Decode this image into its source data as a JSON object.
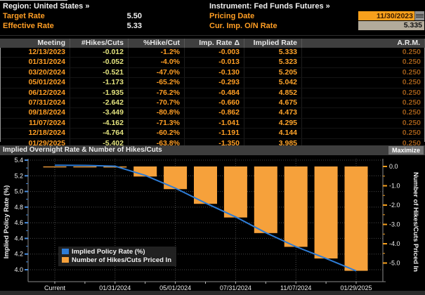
{
  "header": {
    "region_label": "Region: United States »",
    "target_rate_label": "Target Rate",
    "target_rate_value": "5.50",
    "effective_rate_label": "Effective Rate",
    "effective_rate_value": "5.33",
    "instrument_label": "Instrument: Fed Funds Futures »",
    "pricing_date_label": "Pricing Date",
    "pricing_date_value": "11/30/2023",
    "cur_imp_on_rate_label": "Cur. Imp. O/N Rate",
    "cur_imp_on_rate_value": "5.335"
  },
  "table": {
    "columns": [
      "Meeting",
      "#Hikes/Cuts",
      "%Hike/Cut",
      "Imp. Rate Δ",
      "Implied Rate",
      "A.R.M."
    ],
    "rows": [
      [
        "12/13/2023",
        "-0.012",
        "-1.2%",
        "-0.003",
        "5.333",
        "0.250"
      ],
      [
        "01/31/2024",
        "-0.052",
        "-4.0%",
        "-0.013",
        "5.323",
        "0.250"
      ],
      [
        "03/20/2024",
        "-0.521",
        "-47.0%",
        "-0.130",
        "5.205",
        "0.250"
      ],
      [
        "05/01/2024",
        "-1.173",
        "-65.2%",
        "-0.293",
        "5.042",
        "0.250"
      ],
      [
        "06/12/2024",
        "-1.935",
        "-76.2%",
        "-0.484",
        "4.852",
        "0.250"
      ],
      [
        "07/31/2024",
        "-2.642",
        "-70.7%",
        "-0.660",
        "4.675",
        "0.250"
      ],
      [
        "09/18/2024",
        "-3.449",
        "-80.8%",
        "-0.862",
        "4.473",
        "0.250"
      ],
      [
        "11/07/2024",
        "-4.162",
        "-71.3%",
        "-1.041",
        "4.295",
        "0.250"
      ],
      [
        "12/18/2024",
        "-4.764",
        "-60.2%",
        "-1.191",
        "4.144",
        "0.250"
      ],
      [
        "01/29/2025",
        "-5.402",
        "-63.8%",
        "-1.350",
        "3.985",
        "0.250"
      ]
    ]
  },
  "chart": {
    "title": "Implied Overnight Rate & Number of Hikes/Cuts",
    "maximize_label": "Maximize"
  },
  "chart_data": {
    "type": "combo",
    "categories": [
      "Current",
      "12/13/2023",
      "01/31/2024",
      "03/20/2024",
      "05/01/2024",
      "06/12/2024",
      "07/31/2024",
      "09/18/2024",
      "11/07/2024",
      "12/18/2024",
      "01/29/2025"
    ],
    "x_tick_indices": [
      0,
      2,
      4,
      6,
      8,
      10
    ],
    "x_tick_labels": [
      "Current",
      "01/31/2024",
      "05/01/2024",
      "07/31/2024",
      "11/07/2024",
      "01/29/2025"
    ],
    "series": [
      {
        "name": "Implied Policy Rate (%)",
        "type": "line",
        "axis": "left",
        "color": "#2e7cd6",
        "values": [
          5.335,
          5.333,
          5.323,
          5.205,
          5.042,
          4.852,
          4.675,
          4.473,
          4.295,
          4.144,
          3.985
        ]
      },
      {
        "name": "Number of Hikes/Cuts Priced In",
        "type": "bar",
        "axis": "right",
        "color": "#f6a13b",
        "values": [
          0,
          -0.012,
          -0.052,
          -0.521,
          -1.173,
          -1.935,
          -2.642,
          -3.449,
          -4.162,
          -4.764,
          -5.402
        ]
      }
    ],
    "left_axis": {
      "label": "Implied Policy Rate (%)",
      "min": 4.0,
      "max": 5.4,
      "tick_step": 0.2,
      "minor_step": 0.1
    },
    "right_axis": {
      "label": "Number of Hikes/Cuts Priced In",
      "min": -5.0,
      "max": 0.0,
      "tick_step": 1.0,
      "minor_step": 0.5
    },
    "grid": true,
    "legend_position": "bottom-left"
  },
  "colors": {
    "amber_text": "#ff9e24",
    "yellow_text": "#e3e37e",
    "dim_orange_text": "#9c5a18",
    "line_blue": "#2e7cd6",
    "bar_orange": "#f6a13b",
    "input_amber_bg": "#f8a01c",
    "readonly_gray_bg": "#b3ab9b",
    "grid_gray": "#4a4a4a"
  }
}
